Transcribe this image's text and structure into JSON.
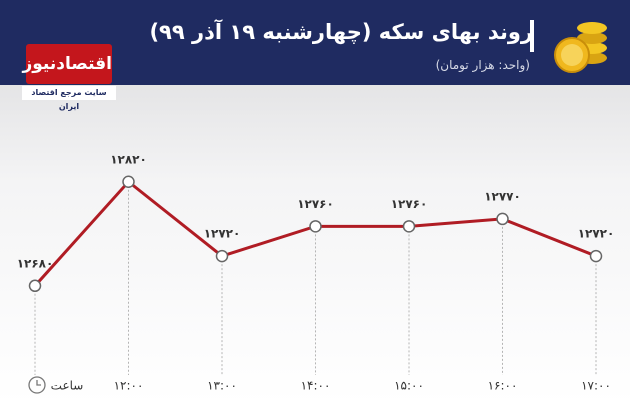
{
  "logo": {
    "name": "اقتصادنیوز",
    "tagline": "سایت مرجع اقتصاد ایران"
  },
  "chart_data": {
    "type": "line",
    "title": "روند بهای سکه (چهارشنبه ۱۹ آذر ۹۹)",
    "subtitle": "(واحد: هزار تومان)",
    "x_label": "ساعت",
    "categories": [
      null,
      "۱۲:۰۰",
      "۱۳:۰۰",
      "۱۴:۰۰",
      "۱۵:۰۰",
      "۱۶:۰۰",
      "۱۷:۰۰"
    ],
    "values": [
      12680,
      12820,
      12720,
      12760,
      12760,
      12770,
      12720
    ],
    "value_labels": [
      "۱۲۶۸۰",
      "۱۲۸۲۰",
      "۱۲۷۲۰",
      "۱۲۷۶۰",
      "۱۲۷۶۰",
      "۱۲۷۷۰",
      "۱۲۷۲۰"
    ],
    "color": "#b01c24",
    "ylim": [
      12560,
      12930
    ]
  }
}
